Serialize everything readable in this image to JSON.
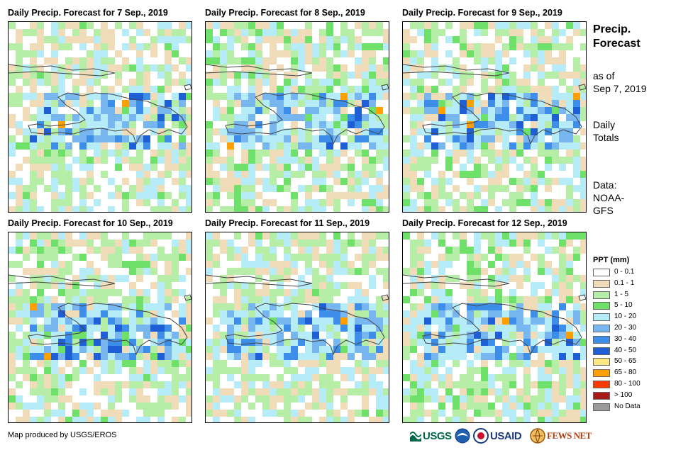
{
  "panels": [
    {
      "title": "Daily Precip. Forecast for 7 Sep., 2019",
      "seed": 7
    },
    {
      "title": "Daily Precip. Forecast for 8 Sep., 2019",
      "seed": 8
    },
    {
      "title": "Daily Precip. Forecast for 9 Sep., 2019",
      "seed": 9
    },
    {
      "title": "Daily Precip. Forecast for 10 Sep., 2019",
      "seed": 10
    },
    {
      "title": "Daily Precip. Forecast for 11 Sep., 2019",
      "seed": 11
    },
    {
      "title": "Daily Precip. Forecast for 12 Sep., 2019",
      "seed": 12
    }
  ],
  "side": {
    "heading_line1": "Precip.",
    "heading_line2": "Forecast",
    "asof_line1": "as of",
    "asof_line2": "Sep 7, 2019",
    "totals_line1": "Daily",
    "totals_line2": "Totals",
    "data_line1": "Data:",
    "data_line2": "NOAA-",
    "data_line3": "GFS"
  },
  "legend": {
    "title": "PPT (mm)",
    "items": [
      {
        "label": "0 - 0.1",
        "color": "#ffffff"
      },
      {
        "label": "0.1 - 1",
        "color": "#f0dcb8"
      },
      {
        "label": "1 - 5",
        "color": "#b6eea8"
      },
      {
        "label": "5 - 10",
        "color": "#6fe06a"
      },
      {
        "label": "10 - 20",
        "color": "#b6ecf8"
      },
      {
        "label": "20 - 30",
        "color": "#78b6f0"
      },
      {
        "label": "30 - 40",
        "color": "#3c8ee8"
      },
      {
        "label": "40 - 50",
        "color": "#1f5fd6"
      },
      {
        "label": "50 - 65",
        "color": "#ffe884"
      },
      {
        "label": "65 - 80",
        "color": "#ffa000"
      },
      {
        "label": "80 - 100",
        "color": "#ff3a00"
      },
      {
        "label": "> 100",
        "color": "#a81a1a"
      },
      {
        "label": "No Data",
        "color": "#9a9a9a"
      }
    ]
  },
  "credit": "Map produced by USGS/EROS",
  "logos": {
    "usgs": "USGS",
    "usaid": "USAID",
    "fewsnet": "FEWS NET"
  }
}
